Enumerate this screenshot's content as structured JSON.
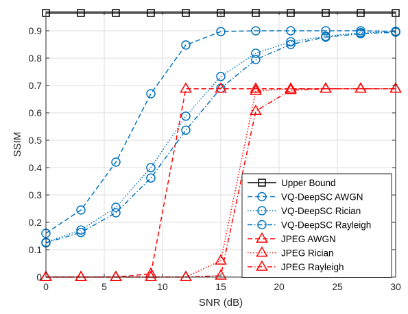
{
  "chart_data": {
    "type": "line",
    "xlabel": "SNR (dB)",
    "ylabel": "SSIM",
    "xlim": [
      0,
      30
    ],
    "ylim": [
      0,
      0.97
    ],
    "xticks": [
      0,
      5,
      10,
      15,
      20,
      25,
      30
    ],
    "yticks": [
      0,
      0.1,
      0.2,
      0.3,
      0.4,
      0.5,
      0.6,
      0.7,
      0.8,
      0.9
    ],
    "grid": true,
    "legend_position": "bottom-right",
    "series": [
      {
        "name": "Upper Bound",
        "color": "#000000",
        "dash": "solid",
        "marker": "square",
        "x": [
          0,
          3,
          6,
          9,
          12,
          15,
          18,
          21,
          24,
          27,
          30
        ],
        "y": [
          0.965,
          0.965,
          0.965,
          0.965,
          0.965,
          0.965,
          0.965,
          0.965,
          0.965,
          0.965,
          0.965
        ]
      },
      {
        "name": "VQ-DeepSC AWGN",
        "color": "#0072BD",
        "dash": "dashed",
        "marker": "circle",
        "x": [
          0,
          3,
          6,
          9,
          12,
          15,
          18,
          21,
          24,
          27,
          30
        ],
        "y": [
          0.16,
          0.245,
          0.42,
          0.67,
          0.848,
          0.897,
          0.9,
          0.9,
          0.9,
          0.9,
          0.898
        ]
      },
      {
        "name": "VQ-DeepSC Rician",
        "color": "#0072BD",
        "dash": "dotted",
        "marker": "circle",
        "x": [
          0,
          3,
          6,
          9,
          12,
          15,
          18,
          21,
          24,
          27,
          30
        ],
        "y": [
          0.127,
          0.172,
          0.255,
          0.4,
          0.588,
          0.733,
          0.818,
          0.86,
          0.88,
          0.893,
          0.897
        ]
      },
      {
        "name": "VQ-DeepSC Rayleigh",
        "color": "#0072BD",
        "dash": "dashdot",
        "marker": "circle",
        "x": [
          0,
          3,
          6,
          9,
          12,
          15,
          18,
          21,
          24,
          27,
          30
        ],
        "y": [
          0.125,
          0.163,
          0.235,
          0.362,
          0.537,
          0.69,
          0.795,
          0.85,
          0.877,
          0.889,
          0.895
        ]
      },
      {
        "name": "JPEG AWGN",
        "color": "#FF0000",
        "dash": "dashed",
        "marker": "triangle",
        "x": [
          0,
          3,
          6,
          9,
          12,
          15,
          18,
          21,
          24,
          27,
          30
        ],
        "y": [
          0,
          0,
          0,
          0.012,
          0.688,
          0.688,
          0.688,
          0.688,
          0.688,
          0.688,
          0.688
        ]
      },
      {
        "name": "JPEG Rician",
        "color": "#FF0000",
        "dash": "dotted",
        "marker": "triangle",
        "x": [
          0,
          3,
          6,
          9,
          12,
          15,
          18,
          21,
          24,
          27,
          30
        ],
        "y": [
          0,
          0,
          0,
          0,
          0,
          0.06,
          0.68,
          0.688,
          0.688,
          0.688,
          0.688
        ]
      },
      {
        "name": "JPEG Rayleigh",
        "color": "#FF0000",
        "dash": "dashdot",
        "marker": "triangle",
        "x": [
          0,
          3,
          6,
          9,
          12,
          15,
          18,
          21,
          24,
          27,
          30
        ],
        "y": [
          0,
          0,
          0,
          0,
          0,
          0.005,
          0.607,
          0.683,
          0.688,
          0.688,
          0.688
        ]
      }
    ]
  }
}
